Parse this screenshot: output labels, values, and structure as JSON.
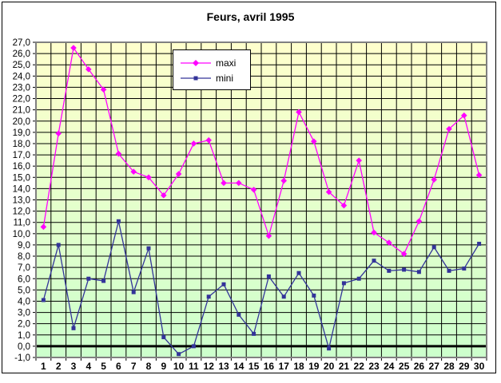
{
  "chart_data": {
    "type": "line",
    "title": "Feurs, avril 1995",
    "x_tick_labels": [
      "1",
      "2",
      "3",
      "4",
      "5",
      "6",
      "7",
      "8",
      "9",
      "10",
      "11",
      "12",
      "13",
      "14",
      "15",
      "16",
      "17",
      "18",
      "19",
      "20",
      "21",
      "22",
      "23",
      "24",
      "25",
      "26",
      "27",
      "28",
      "29",
      "30"
    ],
    "y_tick_labels": [
      "27,0",
      "26,0",
      "25,0",
      "24,0",
      "23,0",
      "22,0",
      "21,0",
      "20,0",
      "19,0",
      "18,0",
      "17,0",
      "16,0",
      "15,0",
      "14,0",
      "13,0",
      "12,0",
      "11,0",
      "10,0",
      "9,0",
      "8,0",
      "7,0",
      "6,0",
      "5,0",
      "4,0",
      "3,0",
      "2,0",
      "1,0",
      "0,0",
      "-1,0"
    ],
    "ylim": [
      -1.0,
      27.0
    ],
    "y_tick_step": 1.0,
    "grid": true,
    "legend_position": "top-center",
    "plot_bg_top": "#FFFFCC",
    "plot_bg_bottom": "#CCFFCC",
    "gridline_color": "#000000",
    "plot_border_color": "#808080",
    "zero_line_color": "#000000",
    "series": [
      {
        "name": "maxi",
        "color": "#FF00FF",
        "marker": "diamond",
        "values": [
          10.6,
          18.9,
          26.5,
          24.6,
          22.8,
          17.1,
          15.5,
          15.0,
          13.4,
          15.3,
          18.0,
          18.3,
          14.5,
          14.5,
          13.9,
          9.8,
          14.7,
          20.8,
          18.2,
          13.7,
          12.5,
          16.5,
          10.1,
          9.2,
          8.2,
          11.1,
          14.8,
          19.3,
          20.5,
          15.2
        ]
      },
      {
        "name": "mini",
        "color": "#333399",
        "marker": "square",
        "values": [
          4.1,
          9.0,
          1.6,
          6.0,
          5.8,
          11.1,
          4.8,
          8.7,
          0.8,
          -0.7,
          0.0,
          4.4,
          5.5,
          2.8,
          1.1,
          6.2,
          4.4,
          6.5,
          4.5,
          -0.2,
          5.6,
          6.0,
          7.6,
          6.7,
          6.8,
          6.6,
          8.8,
          6.7,
          6.9,
          9.1
        ]
      }
    ]
  }
}
